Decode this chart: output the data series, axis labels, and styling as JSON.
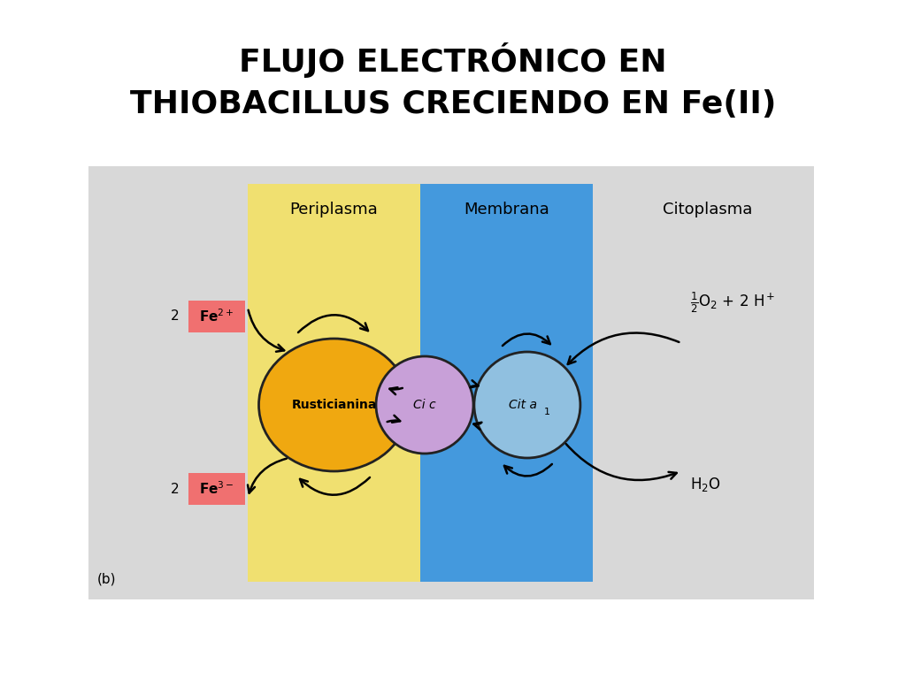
{
  "title_line1": "FLUJO ELECTRÓNICO EN",
  "title_line2": "THIOBACILLUS CRECIENDO EN Fe(II)",
  "title_fontsize": 26,
  "title_fontweight": "bold",
  "bg_color": "#ffffff",
  "diagram_bg": "#d8d8d8",
  "periplasma_color": "#f0e070",
  "membrana_color": "#4499dd",
  "rusticianina_color": "#f0a810",
  "cic_color": "#c8a0d8",
  "cita_color": "#90c0e0",
  "label_periplasma": "Periplasma",
  "label_membrana": "Membrana",
  "label_citoplasma": "Citoplasma",
  "label_rusticianina": "Rusticianina",
  "label_cic": "Ci c",
  "label_cita": "Cit a",
  "note_b": "(b)"
}
